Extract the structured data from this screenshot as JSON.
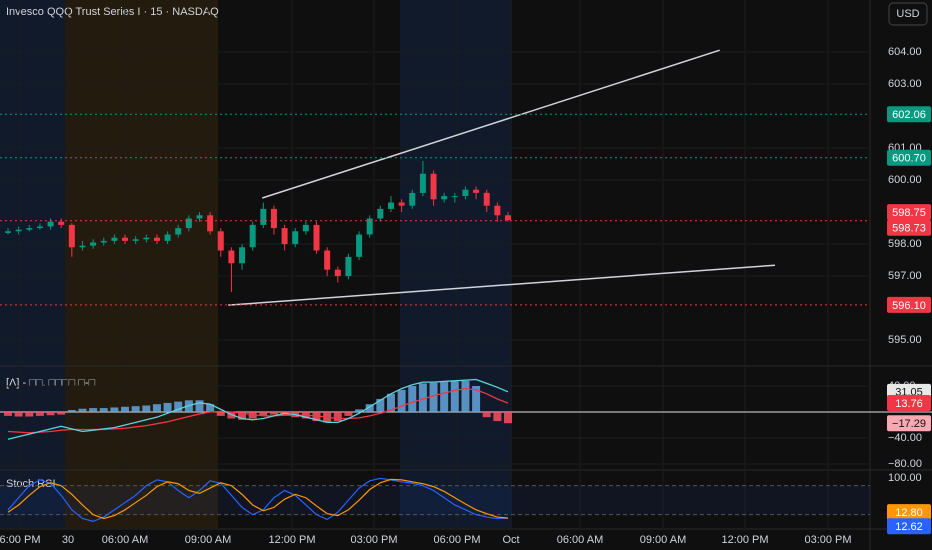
{
  "title": "Invesco QQQ Trust Series I · 15 · NASDAQ",
  "currency": "USD",
  "time_axis": [
    "6:00 PM",
    "30",
    "06:00 AM",
    "09:00 AM",
    "12:00 PM",
    "03:00 PM",
    "06:00 PM",
    "Oct",
    "06:00 AM",
    "09:00 AM",
    "12:00 PM",
    "03:00 PM"
  ],
  "chart_data": [
    {
      "type": "candlestick",
      "up_color": "#089981",
      "down_color": "#f23645",
      "open": [
        598.35,
        598.4,
        598.45,
        598.5,
        598.55,
        598.7,
        598.6,
        597.9,
        597.95,
        598.05,
        598.1,
        598.2,
        598.1,
        598.15,
        598.2,
        598.1,
        598.3,
        598.5,
        598.8,
        598.9,
        598.4,
        597.8,
        597.4,
        597.9,
        598.6,
        599.1,
        598.5,
        598.0,
        598.4,
        598.6,
        597.8,
        597.2,
        597.0,
        597.6,
        598.3,
        598.8,
        599.1,
        599.3,
        599.2,
        599.6,
        600.2,
        599.4,
        599.5,
        599.5,
        599.7,
        599.6,
        599.2,
        598.9
      ],
      "high": [
        598.5,
        598.55,
        598.6,
        598.65,
        598.8,
        598.8,
        598.65,
        598.1,
        598.15,
        598.2,
        598.3,
        598.3,
        598.25,
        598.3,
        598.3,
        598.4,
        598.6,
        598.9,
        599.0,
        599.0,
        598.5,
        597.9,
        598.0,
        598.7,
        599.3,
        599.2,
        598.6,
        598.5,
        598.7,
        598.7,
        597.9,
        597.3,
        597.7,
        598.4,
        598.9,
        599.2,
        599.5,
        599.4,
        599.7,
        600.6,
        600.3,
        599.6,
        599.6,
        599.8,
        599.8,
        599.7,
        599.3,
        599.0
      ],
      "low": [
        598.3,
        598.3,
        598.4,
        598.45,
        598.45,
        598.5,
        597.6,
        597.8,
        597.85,
        597.95,
        598.0,
        598.0,
        598.0,
        598.05,
        598.0,
        598.0,
        598.2,
        598.4,
        598.7,
        598.3,
        597.6,
        596.5,
        597.2,
        597.8,
        598.5,
        598.3,
        597.8,
        597.9,
        598.3,
        597.7,
        597.0,
        596.8,
        596.9,
        597.5,
        598.2,
        598.7,
        599.0,
        599.0,
        599.1,
        599.5,
        599.2,
        599.3,
        599.3,
        599.4,
        599.4,
        599.0,
        598.7,
        598.7
      ],
      "close": [
        598.4,
        598.45,
        598.5,
        598.55,
        598.7,
        598.6,
        597.9,
        597.95,
        598.05,
        598.1,
        598.2,
        598.1,
        598.15,
        598.2,
        598.1,
        598.3,
        598.5,
        598.8,
        598.9,
        598.4,
        597.8,
        597.4,
        597.9,
        598.6,
        599.1,
        598.5,
        598.0,
        598.4,
        598.6,
        597.8,
        597.2,
        597.0,
        597.6,
        598.3,
        598.8,
        599.1,
        599.3,
        599.2,
        599.6,
        600.2,
        599.4,
        599.5,
        599.5,
        599.7,
        599.6,
        599.2,
        598.9,
        598.75
      ],
      "ylim": [
        594.22,
        605.63
      ],
      "yticks": [
        {
          "value": 604,
          "label": "604.00"
        },
        {
          "value": 603,
          "label": "603.00"
        },
        {
          "value": 601,
          "label": "601.00"
        },
        {
          "value": 600,
          "label": "600.00"
        },
        {
          "value": 598,
          "label": "598.00"
        },
        {
          "value": 597,
          "label": "597.00"
        },
        {
          "value": 595,
          "label": "595.00"
        }
      ],
      "grid": true,
      "levels": [
        {
          "value": 602.06,
          "color": "#089981"
        },
        {
          "value": 600.7,
          "label": "600.70",
          "color": "#089981"
        },
        {
          "value": 598.73,
          "color": "#f23645"
        },
        {
          "value": 596.1,
          "label": "596.10",
          "color": "#f23645"
        }
      ],
      "trendlines": [
        {
          "x": [
            23.9,
            66.9
          ],
          "y": [
            599.44,
            604.06
          ],
          "color": "#d1d4dc"
        },
        {
          "x": [
            20.7,
            72.1
          ],
          "y": [
            596.09,
            597.34
          ],
          "color": "#d1d4dc"
        }
      ]
    },
    {
      "type": "macd",
      "label": "[Λ] - □□. □□□□ □-□",
      "histogram": {
        "pos_color": "#64a6dc",
        "neg_color": "#f7525f",
        "values": [
          -6,
          -7,
          -7,
          -6,
          -5,
          -4,
          3,
          5,
          6,
          6,
          7,
          8,
          9,
          10,
          12,
          14,
          16,
          18,
          18,
          12,
          -6,
          -10,
          -12,
          -10,
          -6,
          -4,
          -5,
          -8,
          -10,
          -14,
          -16,
          -14,
          -6,
          4,
          12,
          20,
          28,
          34,
          40,
          44,
          45,
          46,
          47,
          48,
          40,
          -8,
          -14,
          -17.29
        ],
        "value_labels": {
          "47": "−17.29"
        }
      },
      "macd": {
        "color": "#5fd3e0",
        "values": [
          -42,
          -38,
          -34,
          -30,
          -26,
          -22,
          -26,
          -30,
          -28,
          -26,
          -24,
          -20,
          -16,
          -12,
          -8,
          -2,
          4,
          10,
          14,
          12,
          4,
          -4,
          -10,
          -12,
          -10,
          -6,
          -2,
          -4,
          -8,
          -12,
          -16,
          -16,
          -10,
          -2,
          8,
          18,
          28,
          36,
          42,
          46,
          46,
          47,
          48,
          49,
          50,
          44,
          38,
          31.05
        ]
      },
      "signal": {
        "color": "#f23645",
        "values": [
          -30,
          -31,
          -32,
          -31,
          -30,
          -28,
          -27,
          -27,
          -27,
          -27,
          -26,
          -25,
          -23,
          -21,
          -18,
          -15,
          -11,
          -7,
          -3,
          0,
          1,
          0,
          -2,
          -4,
          -6,
          -6,
          -5,
          -5,
          -5,
          -6,
          -8,
          -10,
          -10,
          -9,
          -6,
          -2,
          3,
          9,
          15,
          20,
          25,
          29,
          33,
          36,
          34,
          28,
          20,
          13.76
        ]
      },
      "ylim": [
        -86.2,
        67.7
      ],
      "yticks": [
        {
          "value": 40,
          "label": "40.00"
        },
        {
          "value": -40,
          "label": "−40.00"
        },
        {
          "value": -80,
          "label": "−80.00"
        }
      ],
      "zero_line": 0
    },
    {
      "type": "stoch",
      "label": "Stoch RSI",
      "bands": [
        20,
        80
      ],
      "series": [
        {
          "color": "#2962ff",
          "values": [
            30,
            55,
            80,
            92,
            85,
            60,
            30,
            12,
            6,
            15,
            30,
            45,
            60,
            80,
            92,
            88,
            70,
            55,
            70,
            90,
            85,
            60,
            35,
            20,
            30,
            55,
            70,
            60,
            40,
            20,
            10,
            25,
            50,
            75,
            90,
            95,
            92,
            88,
            85,
            80,
            70,
            55,
            40,
            30,
            20,
            15,
            12,
            12.62
          ]
        },
        {
          "color": "#ff9800",
          "values": [
            25,
            40,
            60,
            78,
            86,
            80,
            62,
            40,
            20,
            12,
            18,
            30,
            45,
            60,
            78,
            88,
            84,
            70,
            64,
            75,
            86,
            80,
            62,
            40,
            28,
            35,
            52,
            62,
            55,
            38,
            22,
            18,
            30,
            50,
            72,
            86,
            93,
            92,
            88,
            84,
            78,
            68,
            55,
            42,
            30,
            22,
            15,
            12.8
          ],
          "value_labels": {
            "47": "12.80"
          }
        }
      ],
      "ylim": [
        -7.7,
        108.3
      ],
      "yticks": [
        {
          "value": 100,
          "label": "100.00"
        }
      ]
    }
  ]
}
